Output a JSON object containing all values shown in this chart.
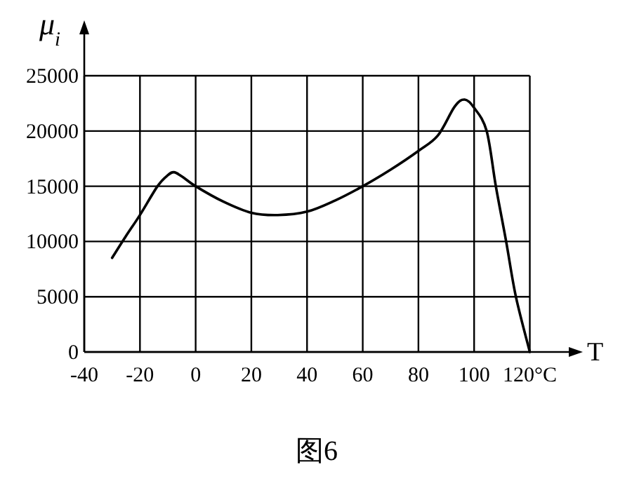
{
  "chart_data": {
    "type": "line",
    "xlabel": "T",
    "ylabel": "μ$_{i}$",
    "x": [
      -30,
      -25,
      -20,
      -13.7,
      -10,
      -7.8,
      -5,
      0,
      10,
      20,
      29.5,
      40,
      50,
      60,
      70,
      80,
      87,
      93,
      96.6,
      100,
      104.5,
      107.8,
      111.5,
      115,
      120
    ],
    "series": [
      {
        "color": "#000000",
        "values": [
          8520,
          10500,
          12400,
          15000,
          16000,
          16270,
          15900,
          15000,
          13600,
          12600,
          12390,
          12700,
          13700,
          15000,
          16500,
          18200,
          19600,
          22200,
          22840,
          22100,
          20000,
          15000,
          10000,
          5000,
          0
        ]
      }
    ],
    "xlim": [
      -40,
      135
    ],
    "ylim": [
      0,
      29000
    ],
    "xticks": [
      -40,
      -20,
      0,
      20,
      40,
      60,
      80,
      100,
      {
        "value": 120,
        "label": "120°C"
      }
    ],
    "yticks": [
      0,
      5000,
      10000,
      15000,
      20000,
      25000
    ],
    "grid": true,
    "marker": "none",
    "line_style": "solid",
    "annotations": [
      "图6"
    ]
  }
}
